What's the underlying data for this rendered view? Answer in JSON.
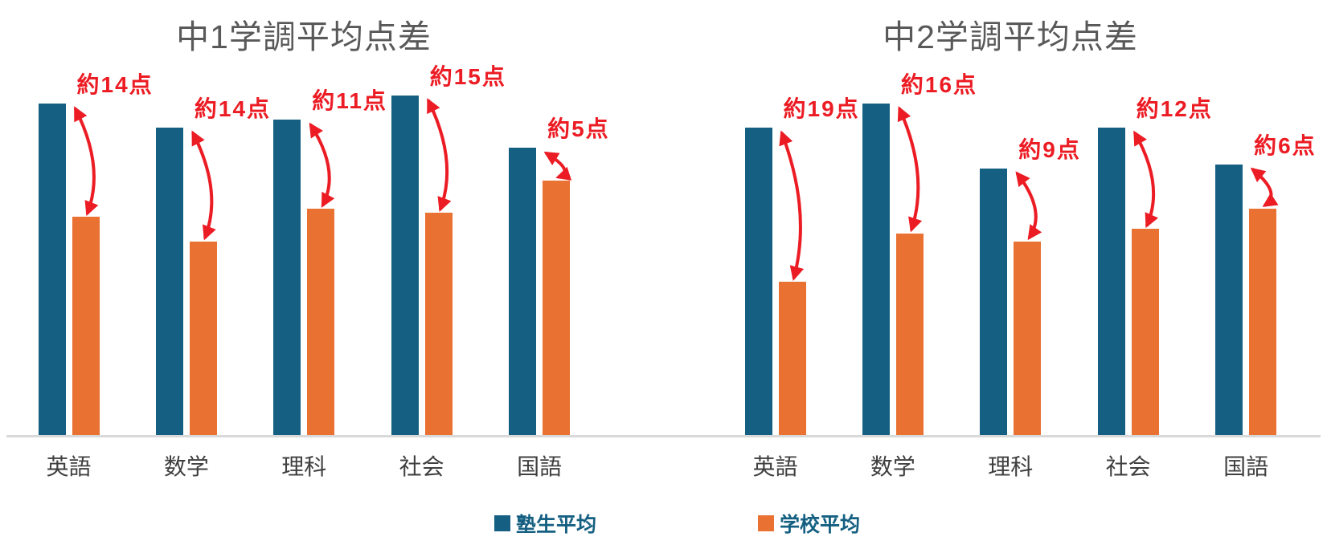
{
  "colors": {
    "juku_bar": "#156082",
    "school_bar": "#E97132",
    "annotation_red": "#EC1C24",
    "title_gray": "#595959",
    "category_text": "#3F3F3F",
    "axis_line": "#D9D9D9",
    "legend_text": "#156082"
  },
  "legend": {
    "items": [
      {
        "label": "塾生平均",
        "color_key": "juku_bar"
      },
      {
        "label": "学校平均",
        "color_key": "school_bar"
      }
    ]
  },
  "chart_data": [
    {
      "type": "bar",
      "title": "中1学調平均点差",
      "categories": [
        "英語",
        "数学",
        "理科",
        "社会",
        "国語"
      ],
      "series": [
        {
          "name": "塾生平均",
          "values": [
            41,
            38,
            39,
            42,
            35.5
          ]
        },
        {
          "name": "学校平均",
          "values": [
            27,
            24,
            28,
            27.5,
            31.5
          ]
        }
      ],
      "diff_labels": [
        "約14点",
        "約14点",
        "約11点",
        "約15点",
        "約5点"
      ],
      "xlabel": "",
      "ylabel": "",
      "ylim": [
        0,
        50
      ],
      "grid": false,
      "y_axis_visible": false,
      "legend_position": "bottom-center",
      "unit": "点"
    },
    {
      "type": "bar",
      "title": "中2学調平均点差",
      "categories": [
        "英語",
        "数学",
        "理科",
        "社会",
        "国語"
      ],
      "series": [
        {
          "name": "塾生平均",
          "values": [
            38,
            41,
            33,
            38,
            33.5
          ]
        },
        {
          "name": "学校平均",
          "values": [
            19,
            25,
            24,
            25.5,
            28
          ]
        }
      ],
      "diff_labels": [
        "約19点",
        "約16点",
        "約9点",
        "約12点",
        "約6点"
      ],
      "xlabel": "",
      "ylabel": "",
      "ylim": [
        0,
        50
      ],
      "grid": false,
      "y_axis_visible": false,
      "legend_position": "bottom-center",
      "unit": "点"
    }
  ]
}
